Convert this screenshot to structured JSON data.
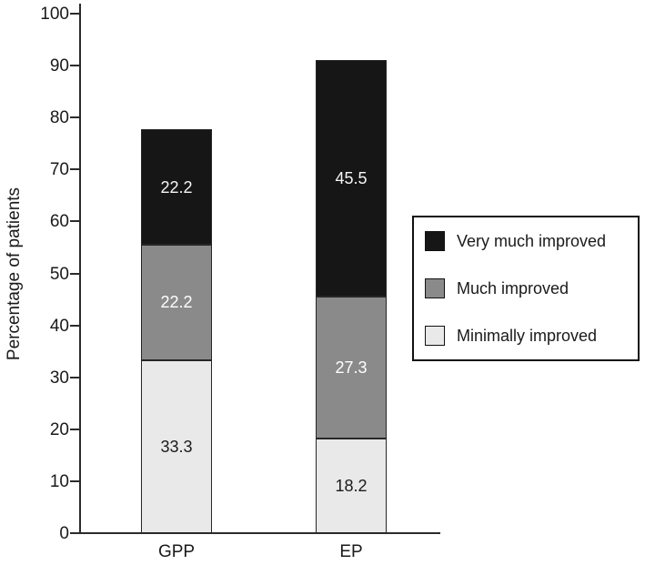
{
  "chart_data": {
    "type": "bar",
    "stacked": true,
    "title": "",
    "xlabel": "",
    "ylabel": "Percentage of patients",
    "ylim": [
      0,
      100
    ],
    "yticks": [
      0,
      10,
      20,
      30,
      40,
      50,
      60,
      70,
      80,
      90,
      100
    ],
    "grid": false,
    "legend_position": "right",
    "categories": [
      "GPP",
      "EP"
    ],
    "series": [
      {
        "name": "Minimally improved",
        "color": "#e9e9e9",
        "label_color": "#1a1a1a",
        "values": [
          33.3,
          18.2
        ]
      },
      {
        "name": "Much improved",
        "color": "#8a8a8a",
        "label_color": "#ffffff",
        "values": [
          22.2,
          27.3
        ]
      },
      {
        "name": "Very much improved",
        "color": "#161616",
        "label_color": "#f5f5f5",
        "values": [
          22.2,
          45.5
        ]
      }
    ],
    "totals": [
      77.7,
      91.0
    ]
  },
  "legend": {
    "items": [
      {
        "label": "Very much improved",
        "color": "#161616"
      },
      {
        "label": "Much improved",
        "color": "#8a8a8a"
      },
      {
        "label": "Minimally improved",
        "color": "#e9e9e9"
      }
    ]
  }
}
